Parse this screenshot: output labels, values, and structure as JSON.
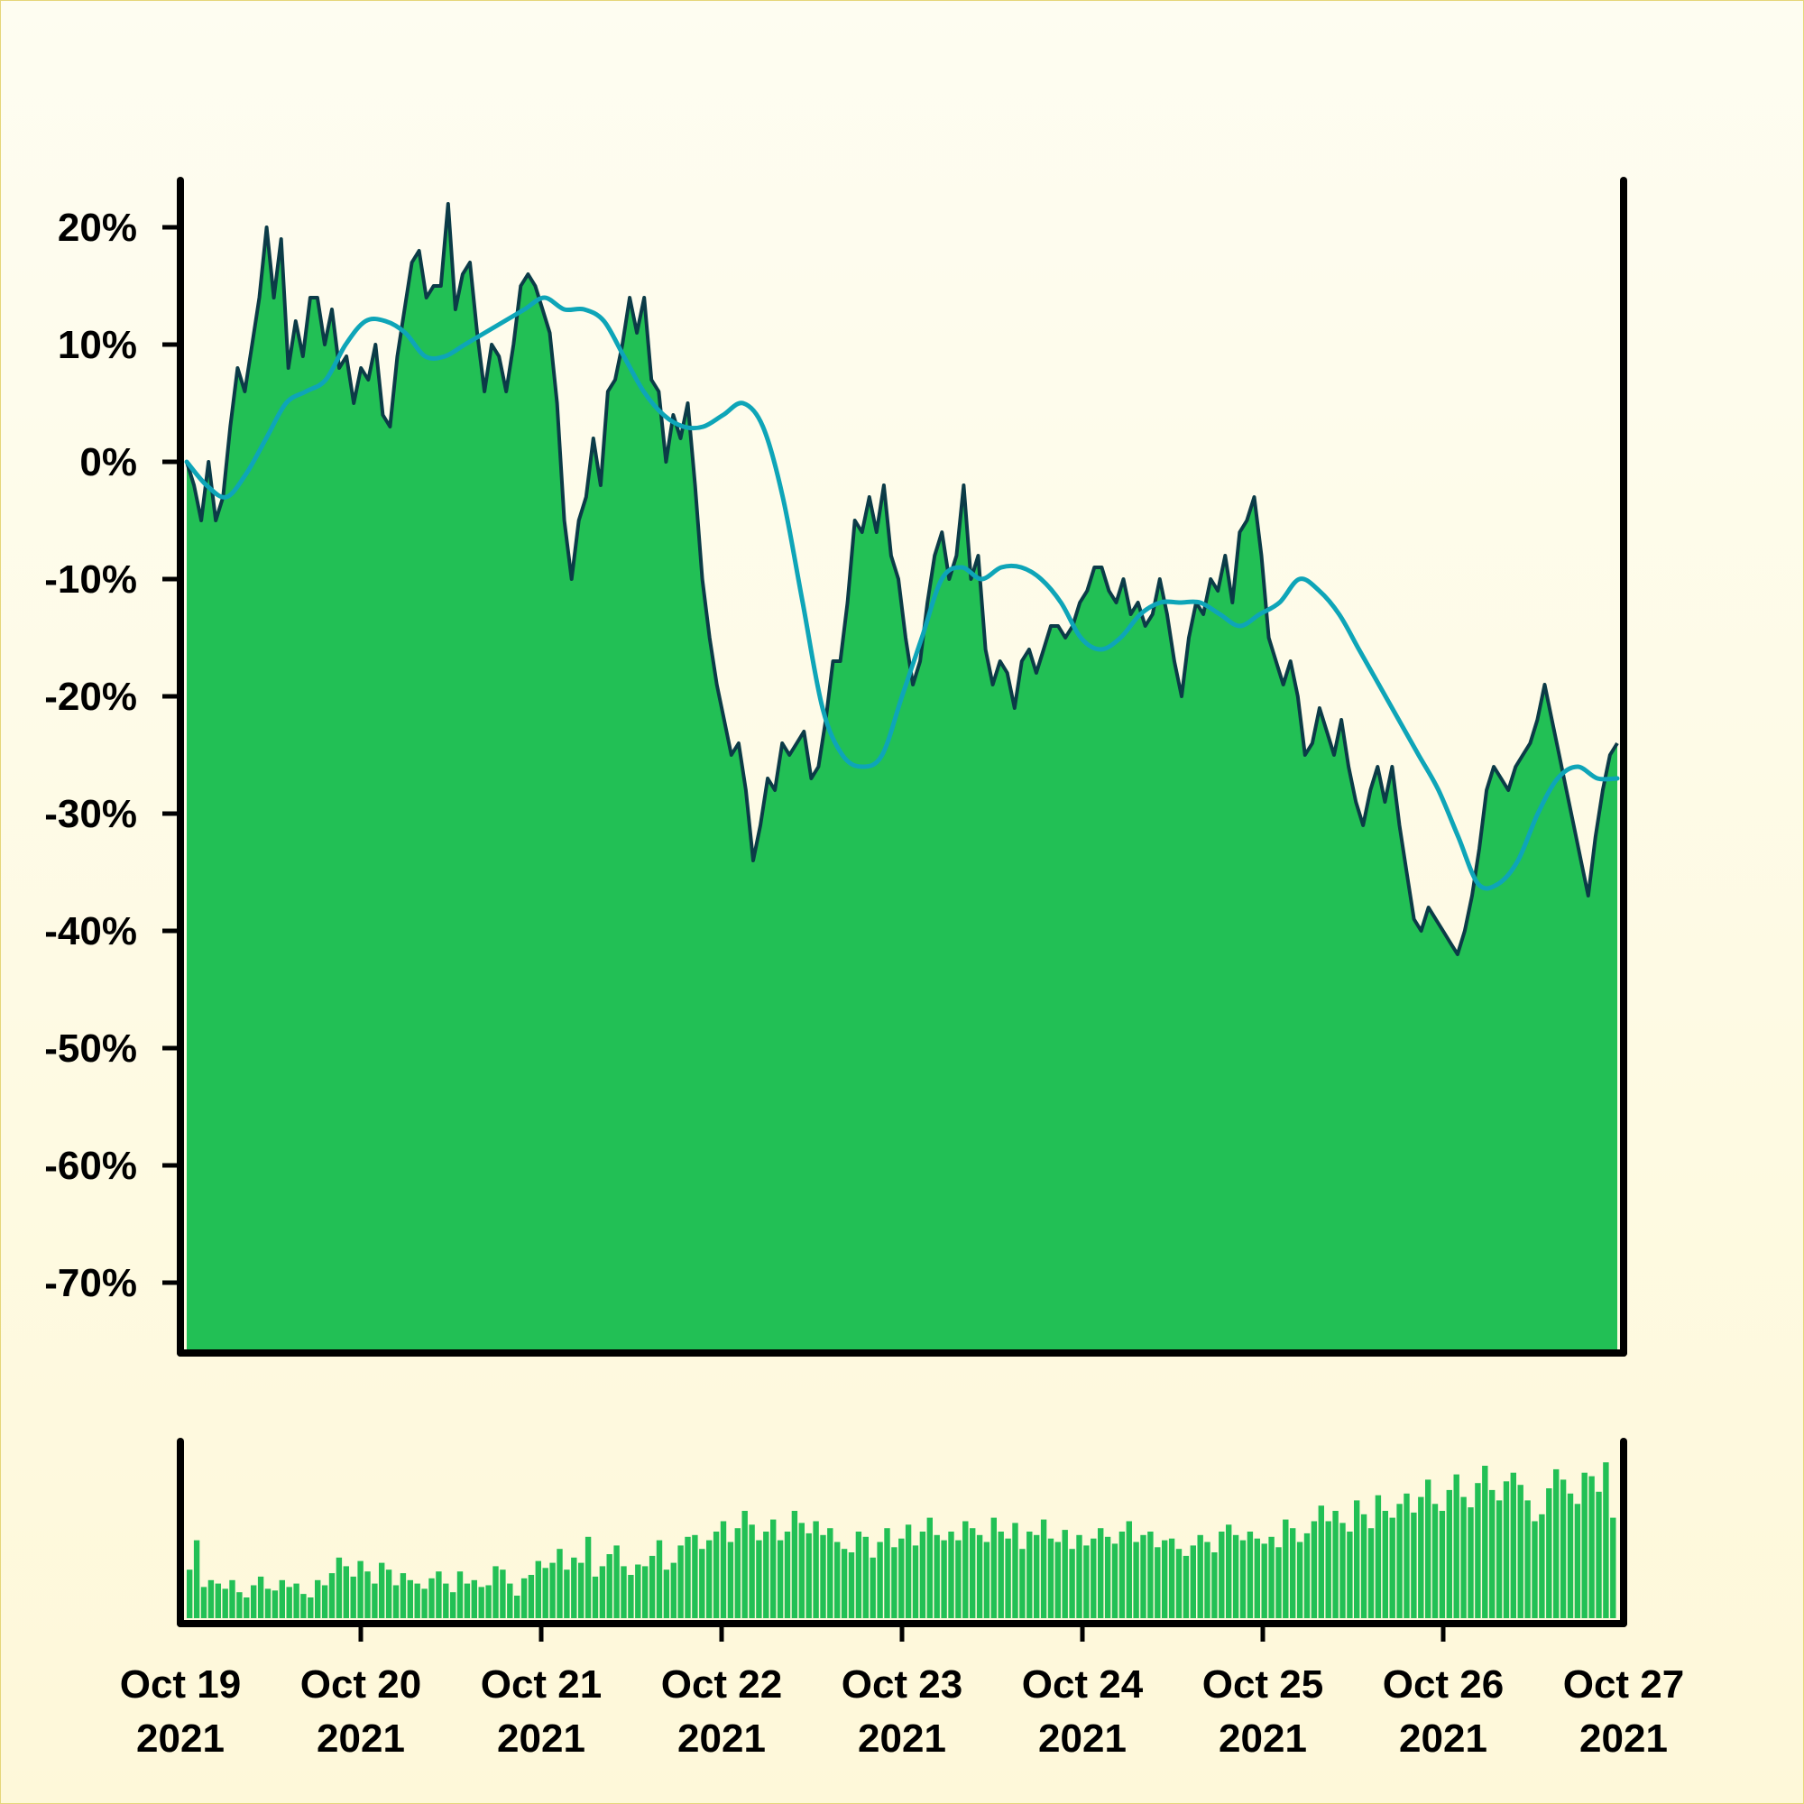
{
  "chart_data": [
    {
      "type": "area",
      "title": "",
      "xlabel": "",
      "ylabel": "",
      "ylim": [
        -76,
        24
      ],
      "y_ticks": [
        20,
        10,
        0,
        -10,
        -20,
        -30,
        -40,
        -50,
        -60,
        -70
      ],
      "y_tick_labels": [
        "20%",
        "10%",
        "0%",
        "-10%",
        "-20%",
        "-30%",
        "-40%",
        "-50%",
        "-60%",
        "-70%"
      ],
      "grid": false,
      "legend": "none",
      "colors": {
        "area": "#22c055",
        "price_line": "#0b3b47",
        "moving_average": "#0ea5b8"
      },
      "series": [
        {
          "values": [
            0,
            -2,
            -5,
            0,
            -5,
            -3,
            3,
            8,
            6,
            10,
            14,
            20,
            14,
            19,
            8,
            12,
            9,
            14,
            14,
            10,
            13,
            8,
            9,
            5,
            8,
            7,
            10,
            4,
            3,
            9,
            13,
            17,
            18,
            14,
            15,
            15,
            22,
            13,
            16,
            17,
            11,
            6,
            10,
            9,
            6,
            10,
            15,
            16,
            15,
            13,
            11,
            5,
            -5,
            -10,
            -5,
            -3,
            2,
            -2,
            6,
            7,
            10,
            14,
            11,
            14,
            7,
            6,
            0,
            4,
            2,
            5,
            -2,
            -10,
            -15,
            -19,
            -22,
            -25,
            -24,
            -28,
            -34,
            -31,
            -27,
            -28,
            -24,
            -25,
            -24,
            -23,
            -27,
            -26,
            -22,
            -17,
            -17,
            -12,
            -5,
            -6,
            -3,
            -6,
            -2,
            -8,
            -10,
            -15,
            -19,
            -17,
            -12,
            -8,
            -6,
            -10,
            -8,
            -2,
            -10,
            -8,
            -16,
            -19,
            -17,
            -18,
            -21,
            -17,
            -16,
            -18,
            -16,
            -14,
            -14,
            -15,
            -14,
            -12,
            -11,
            -9,
            -9,
            -11,
            -12,
            -10,
            -13,
            -12,
            -14,
            -13,
            -10,
            -13,
            -17,
            -20,
            -15,
            -12,
            -13,
            -10,
            -11,
            -8,
            -12,
            -6,
            -5,
            -3,
            -8,
            -15,
            -17,
            -19,
            -17,
            -20,
            -25,
            -24,
            -21,
            -23,
            -25,
            -22,
            -26,
            -29,
            -31,
            -28,
            -26,
            -29,
            -26,
            -31,
            -35,
            -39,
            -40,
            -38,
            -39,
            -40,
            -41,
            -42,
            -40,
            -37,
            -33,
            -28,
            -26,
            -27,
            -28,
            -26,
            -25,
            -24,
            -22,
            -19,
            -22,
            -25,
            -28,
            -31,
            -34,
            -37,
            -32,
            -28,
            -25,
            -24
          ],
          "x_start": "2021-10-19",
          "x_end": "2021-10-27"
        },
        {
          "values": [
            0,
            -2,
            -3,
            -1,
            2,
            5,
            6,
            7,
            10,
            12,
            12,
            11,
            9,
            9,
            10,
            11,
            12,
            13,
            14,
            13,
            13,
            12,
            9,
            6,
            4,
            3,
            3,
            4,
            5,
            3,
            -3,
            -12,
            -21,
            -25,
            -26,
            -25,
            -20,
            -15,
            -10,
            -9,
            -10,
            -9,
            -9,
            -10,
            -12,
            -15,
            -16,
            -15,
            -13,
            -12,
            -12,
            -12,
            -13,
            -14,
            -13,
            -12,
            -10,
            -11,
            -13,
            -16,
            -19,
            -22,
            -25,
            -28,
            -32,
            -36,
            -36,
            -34,
            -30,
            -27,
            -26,
            -27,
            -27
          ],
          "x_start": "2021-10-19",
          "x_end": "2021-10-27"
        }
      ]
    },
    {
      "type": "bar",
      "title": "",
      "x_tick_labels": [
        {
          "line1": "Oct 19",
          "line2": "2021"
        },
        {
          "line1": "Oct 20",
          "line2": "2021"
        },
        {
          "line1": "Oct 21",
          "line2": "2021"
        },
        {
          "line1": "Oct 22",
          "line2": "2021"
        },
        {
          "line1": "Oct 23",
          "line2": "2021"
        },
        {
          "line1": "Oct 24",
          "line2": "2021"
        },
        {
          "line1": "Oct 25",
          "line2": "2021"
        },
        {
          "line1": "Oct 26",
          "line2": "2021"
        },
        {
          "line1": "Oct 27",
          "line2": "2021"
        }
      ],
      "ylim": [
        0,
        1
      ],
      "values": [
        0.28,
        0.45,
        0.18,
        0.22,
        0.2,
        0.17,
        0.22,
        0.15,
        0.12,
        0.19,
        0.24,
        0.17,
        0.16,
        0.22,
        0.18,
        0.2,
        0.14,
        0.12,
        0.22,
        0.19,
        0.26,
        0.35,
        0.3,
        0.24,
        0.33,
        0.27,
        0.2,
        0.32,
        0.28,
        0.19,
        0.26,
        0.22,
        0.2,
        0.17,
        0.23,
        0.27,
        0.2,
        0.15,
        0.27,
        0.2,
        0.22,
        0.18,
        0.19,
        0.3,
        0.28,
        0.2,
        0.13,
        0.23,
        0.25,
        0.33,
        0.29,
        0.32,
        0.4,
        0.28,
        0.35,
        0.32,
        0.47,
        0.24,
        0.3,
        0.37,
        0.42,
        0.3,
        0.25,
        0.31,
        0.3,
        0.36,
        0.45,
        0.28,
        0.32,
        0.42,
        0.47,
        0.48,
        0.4,
        0.45,
        0.5,
        0.56,
        0.44,
        0.52,
        0.62,
        0.54,
        0.45,
        0.5,
        0.57,
        0.45,
        0.5,
        0.62,
        0.55,
        0.49,
        0.56,
        0.48,
        0.52,
        0.44,
        0.4,
        0.38,
        0.5,
        0.47,
        0.35,
        0.44,
        0.52,
        0.41,
        0.46,
        0.54,
        0.42,
        0.5,
        0.58,
        0.48,
        0.45,
        0.5,
        0.45,
        0.56,
        0.52,
        0.48,
        0.44,
        0.58,
        0.5,
        0.46,
        0.55,
        0.4,
        0.5,
        0.48,
        0.57,
        0.46,
        0.44,
        0.51,
        0.4,
        0.48,
        0.42,
        0.46,
        0.52,
        0.47,
        0.43,
        0.5,
        0.56,
        0.44,
        0.48,
        0.5,
        0.41,
        0.45,
        0.46,
        0.4,
        0.36,
        0.42,
        0.48,
        0.44,
        0.38,
        0.5,
        0.54,
        0.48,
        0.45,
        0.5,
        0.46,
        0.43,
        0.47,
        0.41,
        0.57,
        0.52,
        0.44,
        0.49,
        0.56,
        0.65,
        0.56,
        0.62,
        0.55,
        0.5,
        0.68,
        0.6,
        0.52,
        0.71,
        0.62,
        0.58,
        0.66,
        0.72,
        0.61,
        0.7,
        0.8,
        0.66,
        0.62,
        0.74,
        0.83,
        0.7,
        0.64,
        0.78,
        0.88,
        0.74,
        0.68,
        0.79,
        0.84,
        0.77,
        0.68,
        0.56,
        0.6,
        0.75,
        0.86,
        0.8,
        0.72,
        0.66,
        0.84,
        0.82,
        0.73,
        0.9,
        0.58
      ]
    }
  ]
}
